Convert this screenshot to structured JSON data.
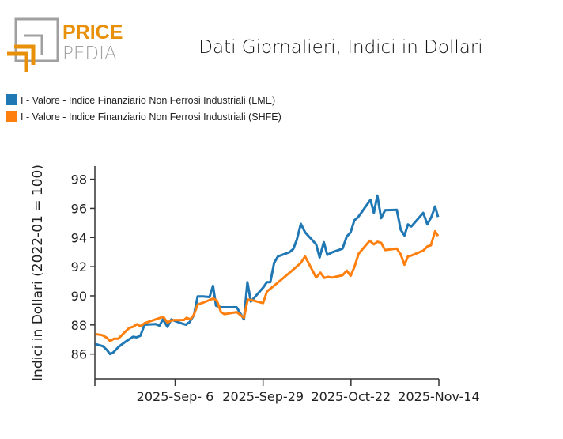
{
  "logo": {
    "line1": "PRICE",
    "line2": "PEDIA"
  },
  "colors": {
    "lme": "#1f77b4",
    "shfe": "#ff7f0e",
    "logo_orange": "#e8900a",
    "logo_grey": "#a0a0a0"
  },
  "chart_data": {
    "type": "line",
    "title": "Dati Giornalieri, Indici in Dollari",
    "xlabel": "",
    "ylabel": "Indici in Dollari (2022-01 = 100)",
    "x_unit": "days since 2025-Aug-16",
    "xlim": [
      0,
      90
    ],
    "ylim": [
      84.3,
      98.9
    ],
    "yticks": [
      86,
      88,
      90,
      92,
      94,
      96,
      98
    ],
    "yticklabels": [
      "86",
      "88",
      "90",
      "92",
      "94",
      "96",
      "98"
    ],
    "xticks": [
      0,
      21,
      44,
      67,
      90
    ],
    "xticklabels": [
      "",
      "2025-Sep- 6",
      "2025-Sep-29",
      "2025-Oct-22",
      "2025-Nov-14"
    ],
    "legend_position": "top-left",
    "series": [
      {
        "name": "I - Valore - Indice Finanziario Non Ferrosi Industriali (LME)",
        "color": "#1f77b4",
        "x": [
          0.1,
          2.1,
          3.1,
          4.0,
          4.8,
          6.2,
          7.9,
          10.0,
          10.9,
          11.9,
          13.0,
          15.9,
          16.9,
          17.8,
          19.0,
          20.0,
          21.0,
          22.4,
          23.8,
          24.8,
          25.9,
          26.9,
          28.3,
          30.0,
          30.9,
          31.7,
          33.1,
          37.1,
          39.0,
          39.9,
          40.8,
          44.1,
          45.0,
          45.9,
          46.9,
          47.9,
          50.9,
          51.9,
          52.8,
          53.9,
          55.0,
          57.9,
          58.8,
          59.9,
          60.8,
          62.1,
          64.8,
          65.9,
          66.9,
          67.9,
          68.8,
          72.1,
          73.0,
          73.9,
          74.9,
          75.9,
          79.0,
          80.0,
          81.0,
          81.9,
          82.8,
          85.9,
          87.0,
          88.1,
          89.0,
          89.8
        ],
        "y": [
          86.69,
          86.54,
          86.29,
          86.0,
          86.11,
          86.5,
          86.83,
          87.19,
          87.15,
          87.26,
          88.02,
          88.06,
          87.95,
          88.38,
          87.87,
          88.38,
          88.27,
          88.13,
          88.02,
          88.2,
          88.67,
          89.96,
          89.96,
          89.92,
          90.69,
          89.32,
          89.21,
          89.21,
          88.38,
          90.94,
          89.6,
          90.58,
          90.94,
          90.94,
          92.27,
          92.7,
          92.99,
          93.21,
          93.82,
          94.94,
          94.36,
          93.53,
          92.63,
          93.68,
          92.81,
          92.99,
          93.24,
          94.07,
          94.36,
          95.19,
          95.37,
          96.59,
          95.69,
          96.88,
          95.33,
          95.87,
          95.9,
          94.54,
          94.14,
          94.9,
          94.76,
          95.69,
          94.9,
          95.44,
          96.13,
          95.41
        ]
      },
      {
        "name": "I - Valore - Indice Finanziario Non Ferrosi Industriali (SHFE)",
        "color": "#ff7f0e",
        "x": [
          0.1,
          1.9,
          3.1,
          4.0,
          5.0,
          6.1,
          7.6,
          9.0,
          10.0,
          11.0,
          11.9,
          13.1,
          15.9,
          17.9,
          19.0,
          20.0,
          21.0,
          23.3,
          24.0,
          25.0,
          25.9,
          26.9,
          28.3,
          31.0,
          31.9,
          33.0,
          33.9,
          37.1,
          39.0,
          40.0,
          41.4,
          44.0,
          45.0,
          47.2,
          50.3,
          53.8,
          55.0,
          57.9,
          59.0,
          60.0,
          61.0,
          62.1,
          64.8,
          65.9,
          66.9,
          67.9,
          69.0,
          71.9,
          73.0,
          73.9,
          74.9,
          75.9,
          79.0,
          80.0,
          81.0,
          81.9,
          82.9,
          85.9,
          87.0,
          87.9,
          89.0,
          89.8
        ],
        "y": [
          87.37,
          87.3,
          87.12,
          86.9,
          87.05,
          87.05,
          87.44,
          87.8,
          87.87,
          88.05,
          87.91,
          88.13,
          88.38,
          88.56,
          88.16,
          88.31,
          88.34,
          88.34,
          88.49,
          88.38,
          88.7,
          89.39,
          89.53,
          89.82,
          89.68,
          88.88,
          88.74,
          88.88,
          88.49,
          89.75,
          89.68,
          89.5,
          90.29,
          90.76,
          91.44,
          92.23,
          92.7,
          91.26,
          91.59,
          91.23,
          91.3,
          91.26,
          91.41,
          91.73,
          91.37,
          91.98,
          92.88,
          93.78,
          93.53,
          93.71,
          93.64,
          93.14,
          93.24,
          92.85,
          92.13,
          92.7,
          92.77,
          93.1,
          93.39,
          93.46,
          94.43,
          94.11
        ]
      }
    ]
  }
}
